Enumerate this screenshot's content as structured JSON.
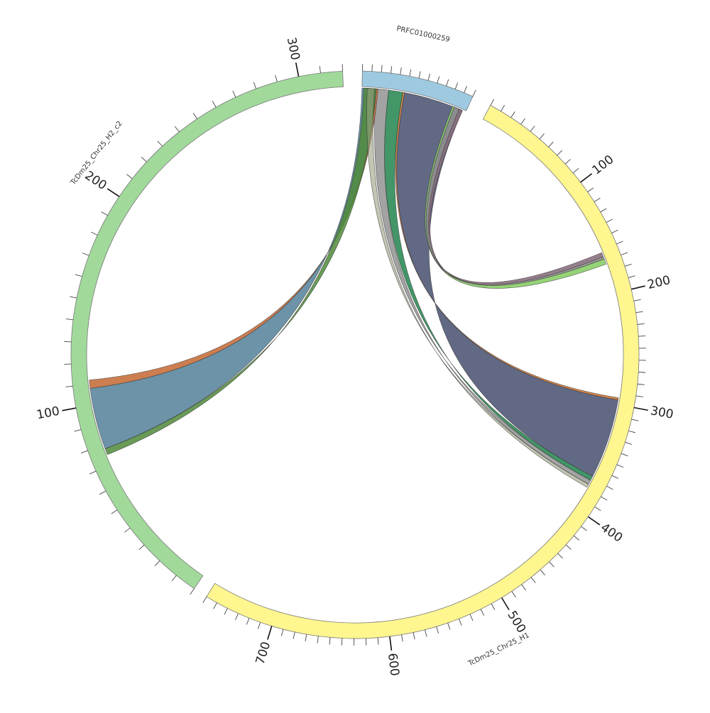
{
  "diagram": {
    "type": "circos-chord",
    "segments": [
      {
        "id": "prfc",
        "name": "PRFC01000259",
        "color": "#9ecae1",
        "length": 60,
        "tick_step": 5,
        "labels": []
      },
      {
        "id": "h1",
        "name": "TcDm25_Chr25_H1",
        "color": "#fff68f",
        "length": 760,
        "tick_step": 10,
        "labels": [
          100,
          200,
          300,
          400,
          500,
          600,
          700
        ]
      },
      {
        "id": "h2",
        "name": "TcDm25_Chr25_H2_c2",
        "color": "#a1d99b",
        "length": 320,
        "tick_step": 10,
        "labels": [
          100,
          200,
          300
        ]
      }
    ],
    "links": [
      {
        "color": "#5c6480",
        "opacity": 0.97,
        "a": {
          "seg": "prfc",
          "start": 24,
          "end": 58
        },
        "b": {
          "seg": "h1",
          "start": 296,
          "end": 368
        }
      },
      {
        "color": "#8a7080",
        "opacity": 0.9,
        "a": {
          "seg": "prfc",
          "start": 55,
          "end": 58
        },
        "b": {
          "seg": "h1",
          "start": 162,
          "end": 166
        }
      },
      {
        "color": "#909090",
        "opacity": 0.9,
        "a": {
          "seg": "prfc",
          "start": 53,
          "end": 56
        },
        "b": {
          "seg": "h1",
          "start": 166,
          "end": 168
        }
      },
      {
        "color": "#8fd16f",
        "opacity": 0.95,
        "a": {
          "seg": "prfc",
          "start": 52,
          "end": 53
        },
        "b": {
          "seg": "h1",
          "start": 168,
          "end": 173
        }
      },
      {
        "color": "#d07a3a",
        "opacity": 0.9,
        "a": {
          "seg": "prfc",
          "start": 23,
          "end": 24
        },
        "b": {
          "seg": "h1",
          "start": 294,
          "end": 296
        }
      },
      {
        "color": "#2e8b57",
        "opacity": 0.9,
        "a": {
          "seg": "prfc",
          "start": 15,
          "end": 23
        },
        "b": {
          "seg": "h1",
          "start": 368,
          "end": 372
        }
      },
      {
        "color": "#8c8c8c",
        "opacity": 0.8,
        "a": {
          "seg": "prfc",
          "start": 8,
          "end": 15
        },
        "b": {
          "seg": "h1",
          "start": 372,
          "end": 376
        }
      },
      {
        "color": "#5f8aa0",
        "opacity": 0.92,
        "a": {
          "seg": "prfc",
          "start": 0,
          "end": 8
        },
        "b": {
          "seg": "h2",
          "start": 78,
          "end": 108
        }
      },
      {
        "color": "#c8703e",
        "opacity": 0.9,
        "a": {
          "seg": "prfc",
          "start": 8,
          "end": 9
        },
        "b": {
          "seg": "h2",
          "start": 108,
          "end": 112
        }
      },
      {
        "color": "#4f8a3a",
        "opacity": 0.85,
        "a": {
          "seg": "prfc",
          "start": 1,
          "end": 8
        },
        "b": {
          "seg": "h2",
          "start": 75,
          "end": 78
        }
      },
      {
        "color": "#9aa080",
        "opacity": 0.6,
        "a": {
          "seg": "prfc",
          "start": 3,
          "end": 7
        },
        "b": {
          "seg": "h1",
          "start": 376,
          "end": 379
        }
      }
    ]
  }
}
